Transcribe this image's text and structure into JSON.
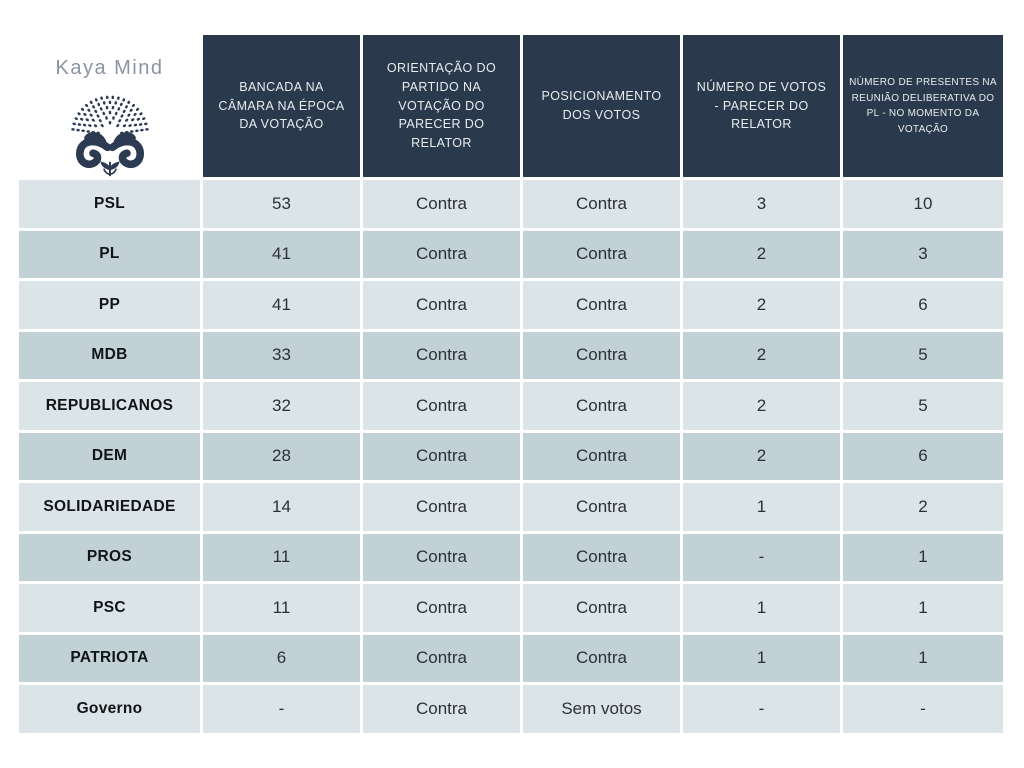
{
  "logo": {
    "text": "Kaya Mind"
  },
  "colors": {
    "header_bg": "#2b394d",
    "header_text": "#e8ecef",
    "row_light": "#dbe5e8",
    "row_dark": "#c2d1d6",
    "icon": "#2d3b52",
    "logo_text": "#8b93a3"
  },
  "table": {
    "columns": [
      "BANCADA NA CÂMARA NA ÉPOCA DA VOTAÇÃO",
      "ORIENTAÇÃO DO PARTIDO NA VOTAÇÃO DO PARECER DO RELATOR",
      "POSICIONAMENTO DOS VOTOS",
      "NÚMERO DE VOTOS - PARECER DO RELATOR",
      "NÚMERO DE PRESENTES NA REUNIÃO DELIBERATIVA DO PL - NO MOMENTO DA VOTAÇÃO"
    ],
    "rows": [
      {
        "party": "PSL",
        "values": [
          "53",
          "Contra",
          "Contra",
          "3",
          "10"
        ]
      },
      {
        "party": "PL",
        "values": [
          "41",
          "Contra",
          "Contra",
          "2",
          "3"
        ]
      },
      {
        "party": "PP",
        "values": [
          "41",
          "Contra",
          "Contra",
          "2",
          "6"
        ]
      },
      {
        "party": "MDB",
        "values": [
          "33",
          "Contra",
          "Contra",
          "2",
          "5"
        ]
      },
      {
        "party": "REPUBLICANOS",
        "values": [
          "32",
          "Contra",
          "Contra",
          "2",
          "5"
        ]
      },
      {
        "party": "DEM",
        "values": [
          "28",
          "Contra",
          "Contra",
          "2",
          "6"
        ]
      },
      {
        "party": "SOLIDARIEDADE",
        "values": [
          "14",
          "Contra",
          "Contra",
          "1",
          "2"
        ]
      },
      {
        "party": "PROS",
        "values": [
          "11",
          "Contra",
          "Contra",
          "-",
          "1"
        ]
      },
      {
        "party": "PSC",
        "values": [
          "11",
          "Contra",
          "Contra",
          "1",
          "1"
        ]
      },
      {
        "party": "PATRIOTA",
        "values": [
          "6",
          "Contra",
          "Contra",
          "1",
          "1"
        ]
      },
      {
        "party": "Governo",
        "values": [
          "-",
          "Contra",
          "Sem votos",
          "-",
          "-"
        ]
      }
    ]
  }
}
